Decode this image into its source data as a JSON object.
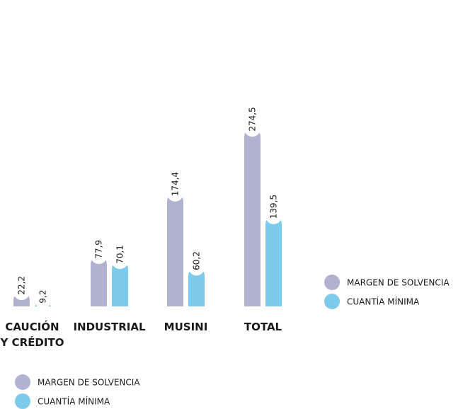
{
  "chart_data": {
    "type": "bar",
    "categories": [
      "CAUCIÓN\nY CRÉDITO",
      "INDUSTRIAL",
      "MUSINI",
      "TOTAL"
    ],
    "series": [
      {
        "name": "MARGEN DE SOLVENCIA",
        "color": "#b1b2cf",
        "values": [
          22.2,
          77.9,
          174.4,
          274.5
        ],
        "labels": [
          "22,2",
          "77,9",
          "174,4",
          "274,5"
        ]
      },
      {
        "name": "CUANTÍA MÍNIMA",
        "color": "#7ccbec",
        "values": [
          9.2,
          70.1,
          60.2,
          139.5
        ],
        "labels": [
          "9,2",
          "70,1",
          "60,2",
          "139,5"
        ]
      }
    ],
    "ylim": [
      0,
      280
    ],
    "legends": [
      {
        "placement": "right",
        "entries": [
          "MARGEN DE SOLVENCIA",
          "CUANTÍA MÍNIMA"
        ]
      },
      {
        "placement": "bottom-left",
        "entries": [
          "MARGEN DE SOLVENCIA",
          "CUANTÍA MÍNIMA"
        ]
      }
    ]
  }
}
